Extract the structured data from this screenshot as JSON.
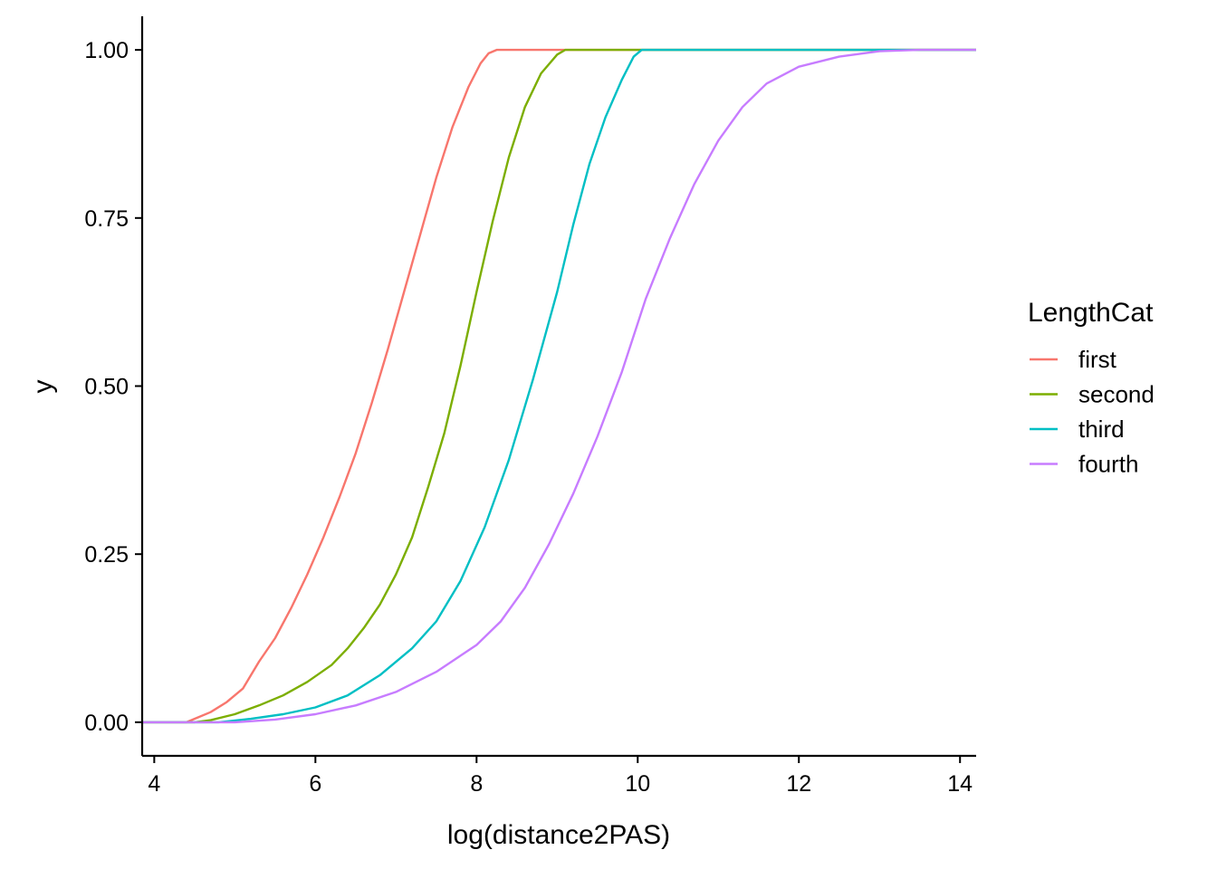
{
  "chart_data": {
    "type": "line",
    "title": "",
    "xlabel": "log(distance2PAS)",
    "ylabel": "y",
    "xlim": [
      3.85,
      14.2
    ],
    "ylim": [
      -0.05,
      1.05
    ],
    "x_ticks": [
      4,
      6,
      8,
      10,
      12,
      14
    ],
    "x_tick_labels": [
      "4",
      "6",
      "8",
      "10",
      "12",
      "14"
    ],
    "y_ticks": [
      0,
      0.25,
      0.5,
      0.75,
      1.0
    ],
    "y_tick_labels": [
      "0.00",
      "0.25",
      "0.50",
      "0.75",
      "1.00"
    ],
    "grid": false,
    "legend": {
      "title": "LengthCat",
      "position": "right"
    },
    "series": [
      {
        "name": "first",
        "color": "#F8766D",
        "points": [
          [
            3.85,
            0
          ],
          [
            4.4,
            0
          ],
          [
            4.5,
            0.005
          ],
          [
            4.7,
            0.015
          ],
          [
            4.9,
            0.03
          ],
          [
            5.1,
            0.05
          ],
          [
            5.3,
            0.09
          ],
          [
            5.5,
            0.125
          ],
          [
            5.7,
            0.17
          ],
          [
            5.9,
            0.22
          ],
          [
            6.1,
            0.275
          ],
          [
            6.3,
            0.335
          ],
          [
            6.5,
            0.4
          ],
          [
            6.7,
            0.475
          ],
          [
            6.9,
            0.555
          ],
          [
            7.1,
            0.64
          ],
          [
            7.3,
            0.725
          ],
          [
            7.5,
            0.81
          ],
          [
            7.7,
            0.885
          ],
          [
            7.9,
            0.945
          ],
          [
            8.05,
            0.98
          ],
          [
            8.15,
            0.995
          ],
          [
            8.25,
            1.0
          ],
          [
            14.2,
            1.0
          ]
        ]
      },
      {
        "name": "second",
        "color": "#7CAE00",
        "points": [
          [
            3.85,
            0
          ],
          [
            4.5,
            0
          ],
          [
            4.7,
            0.003
          ],
          [
            5.0,
            0.012
          ],
          [
            5.3,
            0.025
          ],
          [
            5.6,
            0.04
          ],
          [
            5.9,
            0.06
          ],
          [
            6.2,
            0.085
          ],
          [
            6.4,
            0.11
          ],
          [
            6.6,
            0.14
          ],
          [
            6.8,
            0.175
          ],
          [
            7.0,
            0.22
          ],
          [
            7.2,
            0.275
          ],
          [
            7.4,
            0.35
          ],
          [
            7.6,
            0.43
          ],
          [
            7.8,
            0.53
          ],
          [
            8.0,
            0.64
          ],
          [
            8.2,
            0.745
          ],
          [
            8.4,
            0.84
          ],
          [
            8.6,
            0.915
          ],
          [
            8.8,
            0.965
          ],
          [
            9.0,
            0.993
          ],
          [
            9.1,
            1.0
          ],
          [
            14.2,
            1.0
          ]
        ]
      },
      {
        "name": "third",
        "color": "#00BFC4",
        "points": [
          [
            3.85,
            0
          ],
          [
            4.8,
            0
          ],
          [
            5.2,
            0.005
          ],
          [
            5.6,
            0.012
          ],
          [
            6.0,
            0.022
          ],
          [
            6.4,
            0.04
          ],
          [
            6.8,
            0.07
          ],
          [
            7.2,
            0.11
          ],
          [
            7.5,
            0.15
          ],
          [
            7.8,
            0.21
          ],
          [
            8.1,
            0.29
          ],
          [
            8.4,
            0.39
          ],
          [
            8.7,
            0.51
          ],
          [
            9.0,
            0.64
          ],
          [
            9.2,
            0.74
          ],
          [
            9.4,
            0.83
          ],
          [
            9.6,
            0.9
          ],
          [
            9.8,
            0.955
          ],
          [
            9.95,
            0.99
          ],
          [
            10.05,
            1.0
          ],
          [
            14.2,
            1.0
          ]
        ]
      },
      {
        "name": "fourth",
        "color": "#C77CFF",
        "points": [
          [
            3.85,
            0
          ],
          [
            5.0,
            0
          ],
          [
            5.5,
            0.004
          ],
          [
            6.0,
            0.012
          ],
          [
            6.5,
            0.025
          ],
          [
            7.0,
            0.045
          ],
          [
            7.5,
            0.075
          ],
          [
            8.0,
            0.115
          ],
          [
            8.3,
            0.15
          ],
          [
            8.6,
            0.2
          ],
          [
            8.9,
            0.265
          ],
          [
            9.2,
            0.34
          ],
          [
            9.5,
            0.425
          ],
          [
            9.8,
            0.52
          ],
          [
            10.1,
            0.63
          ],
          [
            10.4,
            0.72
          ],
          [
            10.7,
            0.8
          ],
          [
            11.0,
            0.865
          ],
          [
            11.3,
            0.915
          ],
          [
            11.6,
            0.95
          ],
          [
            12.0,
            0.975
          ],
          [
            12.5,
            0.99
          ],
          [
            13.0,
            0.998
          ],
          [
            13.5,
            1.0
          ],
          [
            14.2,
            1.0
          ]
        ]
      }
    ]
  }
}
